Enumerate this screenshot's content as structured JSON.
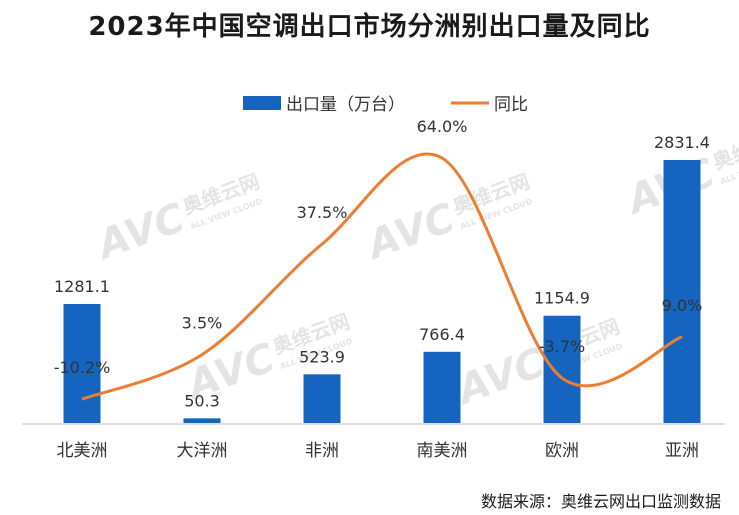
{
  "title": "2023年中国空调出口市场分洲别出口量及同比",
  "source": "数据来源：奥维云网出口监测数据",
  "watermark": {
    "logo": "AVC",
    "cn": "奥维云网",
    "en": "ALL VIEW CLOUD"
  },
  "colors": {
    "bar": "#1565c0",
    "line": "#ed7d31",
    "axis": "#bfbfbf"
  },
  "chart_data": {
    "type": "bar",
    "categories": [
      "北美洲",
      "大洋洲",
      "非洲",
      "南美洲",
      "欧洲",
      "亚洲"
    ],
    "series": [
      {
        "name": "出口量（万台）",
        "type": "bar",
        "axis": "left",
        "values": [
          1281.1,
          50.3,
          523.9,
          766.4,
          1154.9,
          2831.4
        ],
        "labels": [
          "1281.1",
          "50.3",
          "523.9",
          "766.4",
          "1154.9",
          "2831.4"
        ]
      },
      {
        "name": "同比",
        "type": "line",
        "axis": "right",
        "smooth": true,
        "values": [
          -10.2,
          3.5,
          37.5,
          64.0,
          -3.7,
          9.0
        ],
        "labels": [
          "-10.2%",
          "3.5%",
          "37.5%",
          "64.0%",
          "-3.7%",
          "9.0%"
        ]
      }
    ],
    "legend": "top-center",
    "grid": false
  }
}
